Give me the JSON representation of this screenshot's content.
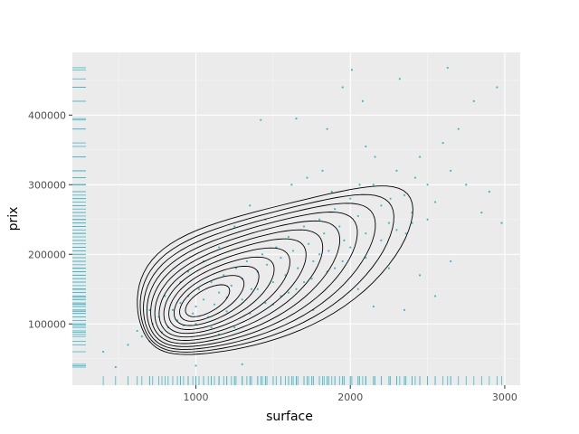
{
  "chart_data": {
    "type": "scatter",
    "title": "",
    "xlabel": "surface",
    "ylabel": "prix",
    "xlim": [
      200,
      3100
    ],
    "ylim": [
      12000,
      490000
    ],
    "x_ticks": [
      1000,
      2000,
      3000
    ],
    "y_ticks": [
      100000,
      200000,
      300000,
      400000
    ],
    "x_tick_labels": [
      "1000",
      "2000",
      "3000"
    ],
    "y_tick_labels": [
      "100000",
      "200000",
      "300000",
      "400000"
    ],
    "grid": true,
    "legend": "none",
    "colors": {
      "points": "#3fb8c8",
      "contours": "#000000",
      "panel": "#ebebeb",
      "grid": "#ffffff"
    },
    "layers": [
      "points",
      "density-2d-contours",
      "marginal-rugs"
    ],
    "density_center": {
      "x": 1050,
      "y": 130000
    },
    "contour_levels": 12,
    "points": [
      [
        620,
        90000
      ],
      [
        650,
        82000
      ],
      [
        700,
        75000
      ],
      [
        720,
        100000
      ],
      [
        760,
        110000
      ],
      [
        780,
        88000
      ],
      [
        820,
        95000
      ],
      [
        850,
        120000
      ],
      [
        880,
        105000
      ],
      [
        900,
        130000
      ],
      [
        920,
        98000
      ],
      [
        950,
        140000
      ],
      [
        980,
        115000
      ],
      [
        1000,
        125000
      ],
      [
        1020,
        150000
      ],
      [
        1050,
        135000
      ],
      [
        1080,
        110000
      ],
      [
        1100,
        160000
      ],
      [
        1120,
        128000
      ],
      [
        1150,
        145000
      ],
      [
        1180,
        170000
      ],
      [
        1200,
        138000
      ],
      [
        1230,
        155000
      ],
      [
        1260,
        180000
      ],
      [
        1300,
        165000
      ],
      [
        1330,
        190000
      ],
      [
        1360,
        150000
      ],
      [
        1400,
        175000
      ],
      [
        1430,
        200000
      ],
      [
        1460,
        185000
      ],
      [
        1500,
        160000
      ],
      [
        1520,
        210000
      ],
      [
        1550,
        195000
      ],
      [
        1580,
        170000
      ],
      [
        1600,
        225000
      ],
      [
        1630,
        205000
      ],
      [
        1660,
        180000
      ],
      [
        1700,
        240000
      ],
      [
        1730,
        215000
      ],
      [
        1760,
        190000
      ],
      [
        1800,
        250000
      ],
      [
        1830,
        230000
      ],
      [
        1860,
        205000
      ],
      [
        1900,
        265000
      ],
      [
        1930,
        240000
      ],
      [
        1960,
        220000
      ],
      [
        2000,
        280000
      ],
      [
        2050,
        255000
      ],
      [
        2100,
        230000
      ],
      [
        2150,
        300000
      ],
      [
        2200,
        270000
      ],
      [
        2250,
        245000
      ],
      [
        2300,
        320000
      ],
      [
        2350,
        285000
      ],
      [
        2400,
        260000
      ],
      [
        2450,
        340000
      ],
      [
        2500,
        300000
      ],
      [
        2550,
        275000
      ],
      [
        2600,
        360000
      ],
      [
        2650,
        320000
      ],
      [
        2700,
        380000
      ],
      [
        2750,
        300000
      ],
      [
        2800,
        420000
      ],
      [
        2850,
        260000
      ],
      [
        2900,
        290000
      ],
      [
        2950,
        440000
      ],
      [
        2980,
        245000
      ],
      [
        2010,
        465000
      ],
      [
        2630,
        468000
      ],
      [
        2320,
        452000
      ],
      [
        1420,
        393000
      ],
      [
        1650,
        395000
      ],
      [
        1850,
        380000
      ],
      [
        1950,
        440000
      ],
      [
        2080,
        420000
      ],
      [
        2100,
        355000
      ],
      [
        2420,
        310000
      ],
      [
        2500,
        250000
      ],
      [
        400,
        60000
      ],
      [
        480,
        38000
      ],
      [
        560,
        70000
      ],
      [
        1000,
        40000
      ],
      [
        1300,
        42000
      ],
      [
        1150,
        85000
      ],
      [
        1250,
        95000
      ],
      [
        1350,
        115000
      ],
      [
        1450,
        130000
      ],
      [
        1550,
        140000
      ],
      [
        1650,
        150000
      ],
      [
        1750,
        165000
      ],
      [
        1850,
        175000
      ],
      [
        1950,
        190000
      ],
      [
        2050,
        150000
      ],
      [
        2150,
        125000
      ],
      [
        2250,
        180000
      ],
      [
        2350,
        120000
      ],
      [
        2450,
        170000
      ],
      [
        2550,
        140000
      ],
      [
        2650,
        190000
      ],
      [
        700,
        120000
      ],
      [
        800,
        140000
      ],
      [
        900,
        160000
      ],
      [
        1000,
        100000
      ],
      [
        1100,
        95000
      ],
      [
        1200,
        118000
      ],
      [
        1300,
        135000
      ],
      [
        1400,
        150000
      ],
      [
        1500,
        128000
      ],
      [
        1600,
        145000
      ],
      [
        1700,
        160000
      ],
      [
        1800,
        200000
      ],
      [
        1900,
        180000
      ],
      [
        2000,
        210000
      ],
      [
        2100,
        195000
      ],
      [
        2200,
        220000
      ],
      [
        2300,
        235000
      ],
      [
        2400,
        245000
      ],
      [
        1760,
        120000
      ],
      [
        1620,
        300000
      ],
      [
        1720,
        310000
      ],
      [
        1820,
        320000
      ],
      [
        1880,
        290000
      ],
      [
        2060,
        300000
      ],
      [
        2160,
        340000
      ],
      [
        2260,
        280000
      ],
      [
        2360,
        230000
      ],
      [
        1350,
        270000
      ],
      [
        1450,
        250000
      ],
      [
        1250,
        240000
      ],
      [
        1150,
        210000
      ],
      [
        1050,
        190000
      ],
      [
        950,
        175000
      ]
    ]
  }
}
